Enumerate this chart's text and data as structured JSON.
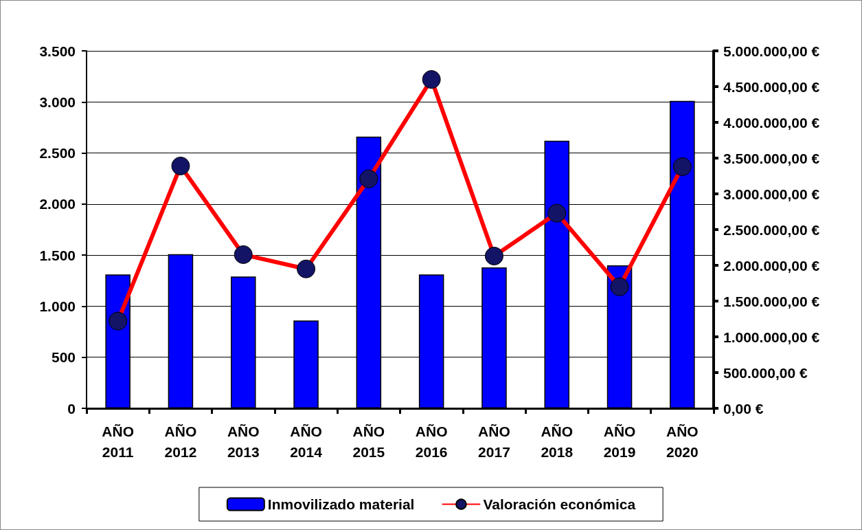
{
  "chart_data": {
    "type": "bar",
    "categories": [
      "AÑO 2011",
      "AÑO 2012",
      "AÑO 2013",
      "AÑO 2014",
      "AÑO 2015",
      "AÑO 2016",
      "AÑO 2017",
      "AÑO 2018",
      "AÑO 2019",
      "AÑO 2020"
    ],
    "series": [
      {
        "name": "Inmovilizado material",
        "color": "#0000ff",
        "values": [
          1310,
          1510,
          1290,
          860,
          2660,
          1310,
          1380,
          2620,
          1400,
          3010
        ]
      },
      {
        "name": "Valoración económica",
        "type": "line",
        "axis": "y2",
        "color": "#ff0000",
        "marker": "circle",
        "values": [
          1220000,
          3390000,
          2150000,
          1950000,
          3210000,
          4600000,
          2130000,
          2730000,
          1700000,
          3380000
        ]
      }
    ],
    "ylim": [
      0,
      3500
    ],
    "yticks": [
      {
        "value": 0,
        "label": "0"
      },
      {
        "value": 500,
        "label": "500"
      },
      {
        "value": 1000,
        "label": "1.000"
      },
      {
        "value": 1500,
        "label": "1.500"
      },
      {
        "value": 2000,
        "label": "2.000"
      },
      {
        "value": 2500,
        "label": "2.500"
      },
      {
        "value": 3000,
        "label": "3.000"
      },
      {
        "value": 3500,
        "label": "3.500"
      }
    ],
    "y2lim": [
      0,
      5000000
    ],
    "y2ticks": [
      {
        "value": 0,
        "label": "0,00 €"
      },
      {
        "value": 500000,
        "label": "500.000,00 €"
      },
      {
        "value": 1000000,
        "label": "1.000.000,00 €"
      },
      {
        "value": 1500000,
        "label": "1.500.000,00 €"
      },
      {
        "value": 2000000,
        "label": "2.000.000,00 €"
      },
      {
        "value": 2500000,
        "label": "2.500.000,00 €"
      },
      {
        "value": 3000000,
        "label": "3.000.000,00 €"
      },
      {
        "value": 3500000,
        "label": "3.500.000,00 €"
      },
      {
        "value": 4000000,
        "label": "4.000.000,00 €"
      },
      {
        "value": 4500000,
        "label": "4.500.000,00 €"
      },
      {
        "value": 5000000,
        "label": "5.000.000,00 €"
      }
    ],
    "grid": "y",
    "legend": "bottom"
  }
}
